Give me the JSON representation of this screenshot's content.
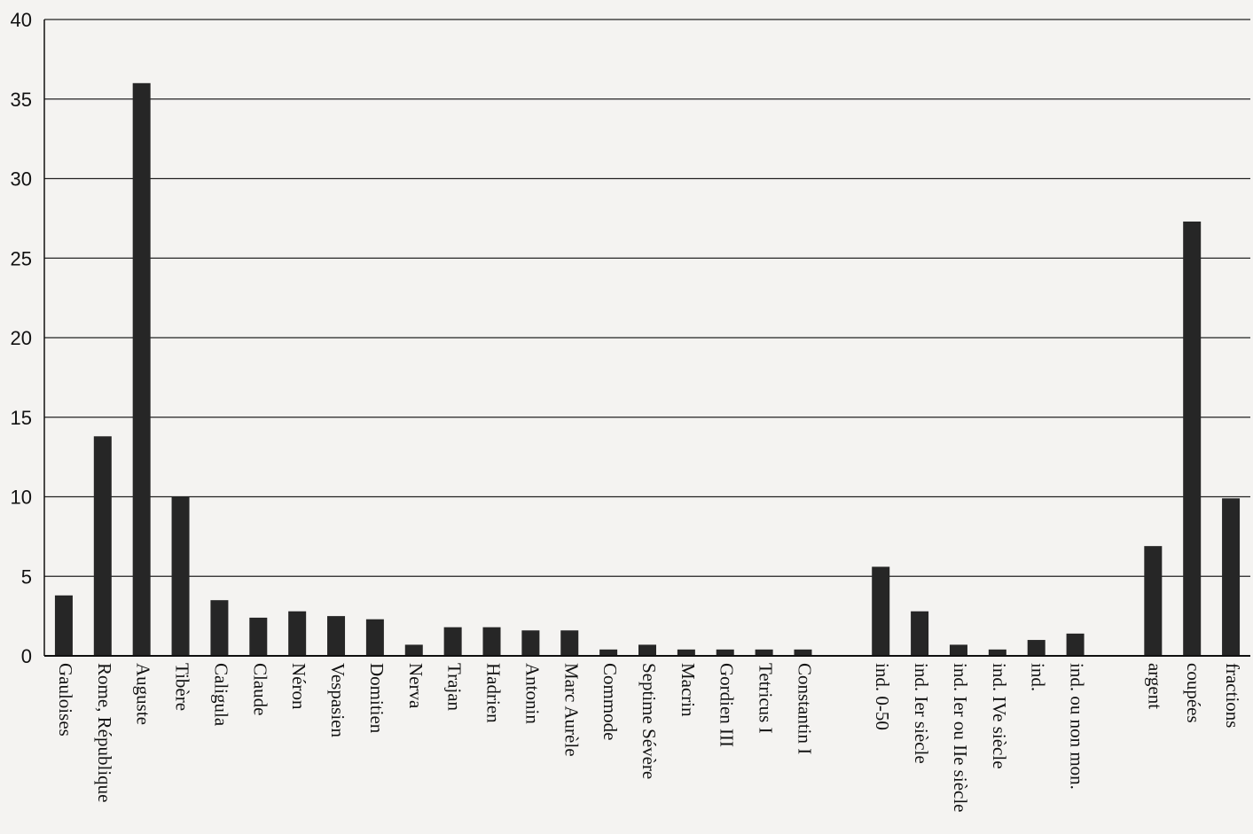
{
  "chart_data": {
    "type": "bar",
    "title": "",
    "xlabel": "",
    "ylabel": "",
    "ylim": [
      0,
      40
    ],
    "yticks": [
      0,
      5,
      10,
      15,
      20,
      25,
      30,
      35,
      40
    ],
    "grid": true,
    "categories": [
      "Gauloises",
      "Rome, République",
      "Auguste",
      "Tibère",
      "Caligula",
      "Claude",
      "Néron",
      "Vespasien",
      "Domitien",
      "Nerva",
      "Trajan",
      "Hadrien",
      "Antonin",
      "Marc Aurèle",
      "Commode",
      "Septime Sévère",
      "Macrin",
      "Gordien III",
      "Tetricus I",
      "Constantin I",
      "",
      "ind. 0-50",
      "ind. Ier siècle",
      "ind. Ier ou IIe siècle",
      "ind. IVe siècle",
      "ind.",
      "ind. ou non mon.",
      "",
      "argent",
      "coupées",
      "fractions"
    ],
    "values": [
      3.8,
      13.8,
      36,
      10,
      3.5,
      2.4,
      2.8,
      2.5,
      2.3,
      0.7,
      1.8,
      1.8,
      1.6,
      1.6,
      0.4,
      0.7,
      0.4,
      0.4,
      0.4,
      0.4,
      0,
      5.6,
      2.8,
      0.7,
      0.4,
      1,
      1.4,
      0,
      6.9,
      27.3,
      9.9
    ],
    "bar_color": "#262626"
  }
}
